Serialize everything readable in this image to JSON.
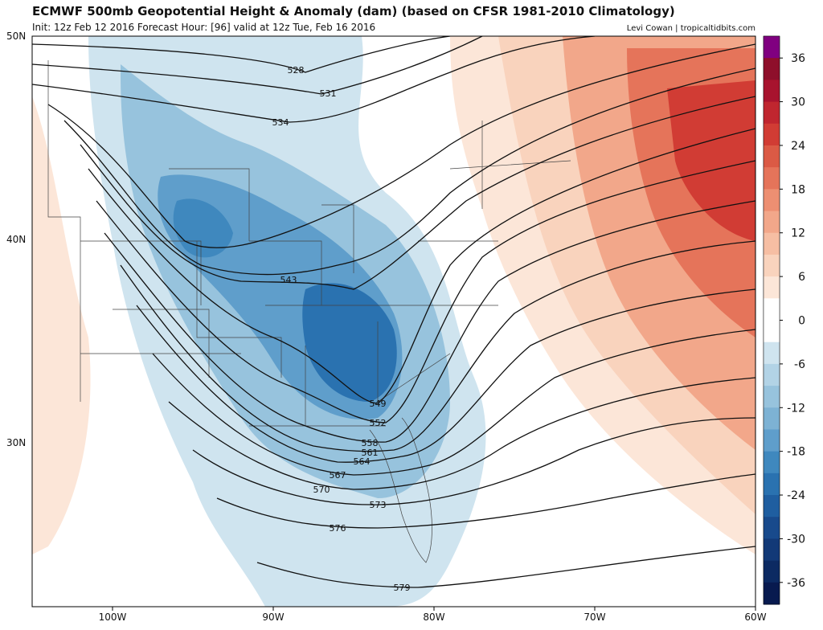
{
  "header": {
    "title": "ECMWF 500mb Geopotential Height & Anomaly (dam) (based on CFSR 1981-2010 Climatology)",
    "subtitle": "Init: 12z Feb 12 2016   Forecast Hour: [96]   valid at 12z Tue, Feb 16 2016",
    "credit": "Levi Cowan | tropicaltidbits.com"
  },
  "map": {
    "lat_labels": [
      "50N",
      "40N",
      "30N"
    ],
    "lon_labels": [
      "100W",
      "90W",
      "80W",
      "70W",
      "60W"
    ],
    "contour_labels": [
      "528",
      "531",
      "534",
      "543",
      "549",
      "552",
      "558",
      "561",
      "564",
      "567",
      "570",
      "573",
      "576",
      "579"
    ]
  },
  "colorbar": {
    "ticks": [
      36,
      30,
      24,
      18,
      12,
      6,
      0,
      -6,
      -12,
      -18,
      -24,
      -30,
      -36
    ],
    "lim": [
      -39,
      39
    ],
    "colors": [
      "#800080",
      "#8e0f2b",
      "#a8132e",
      "#c0262f",
      "#d13c34",
      "#db5a45",
      "#e5745a",
      "#ed8f72",
      "#f2a78a",
      "#f6bea3",
      "#f9d3bd",
      "#fce6d8",
      "#ffffff",
      "#ffffff",
      "#cfe4ef",
      "#b2d3e6",
      "#97c3dd",
      "#7db2d4",
      "#5f9ecb",
      "#3f88be",
      "#2a72b0",
      "#1f5ea0",
      "#184a8c",
      "#123977",
      "#0c2a62",
      "#081a4f"
    ]
  }
}
